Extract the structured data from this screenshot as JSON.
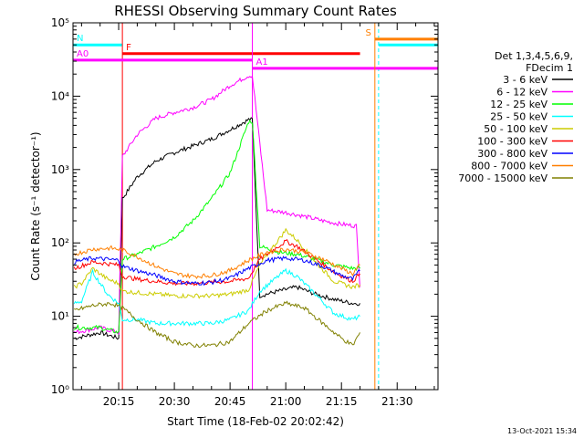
{
  "chart_data": {
    "type": "line",
    "title": "RHESSI Observing Summary Count Rates",
    "xlabel": "Start Time (18-Feb-02 20:02:42)",
    "ylabel": "Count Rate (s⁻¹ detector⁻¹)",
    "y_scale": "log",
    "ylim": [
      1,
      100000
    ],
    "xlim": [
      "20:02:42",
      "21:41:00"
    ],
    "x_tick_labels": [
      "20:15",
      "20:30",
      "20:45",
      "21:00",
      "21:15",
      "21:30"
    ],
    "y_tick_labels": [
      "10⁰",
      "10¹",
      "10²",
      "10³",
      "10⁴",
      "10⁵"
    ],
    "legend": {
      "header": [
        "Det 1,3,4,5,6,9,",
        "FDecim 1"
      ],
      "position": "right"
    },
    "flags": [
      {
        "label": "N",
        "color": "#00ffff",
        "segments": [
          [
            "20:02:42",
            "20:16:00"
          ],
          [
            "21:25:00",
            "21:41:00"
          ]
        ],
        "level": 50000
      },
      {
        "label": "F",
        "color": "#ff0000",
        "segments": [
          [
            "20:16:00",
            "21:20:00"
          ]
        ],
        "level": 38000
      },
      {
        "label": "A0",
        "color": "#ff00ff",
        "segments": [
          [
            "20:02:42",
            "20:51:00"
          ]
        ],
        "level": 31000
      },
      {
        "label": "A1",
        "color": "#ff00ff",
        "segments": [
          [
            "20:51:00",
            "21:41:00"
          ]
        ],
        "level": 24000
      },
      {
        "label": "S",
        "color": "#ff7f00",
        "segments": [
          [
            "21:24:00",
            "21:41:00"
          ]
        ],
        "level": 60000
      }
    ],
    "series": [
      {
        "name": "3 - 6 keV",
        "color": "#000000",
        "x": [
          "20:03",
          "20:10",
          "20:15",
          "20:16",
          "20:20",
          "20:25",
          "20:30",
          "20:35",
          "20:40",
          "20:45",
          "20:50",
          "20:51",
          "20:53",
          "20:58",
          "21:03",
          "21:08",
          "21:13",
          "21:18",
          "21:20"
        ],
        "values": [
          5,
          6,
          5,
          400,
          800,
          1300,
          1700,
          2100,
          2600,
          3500,
          4800,
          4800,
          19,
          22,
          25,
          20,
          17,
          15,
          15
        ]
      },
      {
        "name": "6 - 12 keV",
        "color": "#ff00ff",
        "x": [
          "20:03",
          "20:10",
          "20:15",
          "20:16",
          "20:20",
          "20:25",
          "20:30",
          "20:35",
          "20:40",
          "20:45",
          "20:50",
          "20:51",
          "20:55",
          "21:00",
          "21:05",
          "21:10",
          "21:15",
          "21:19",
          "21:20"
        ],
        "values": [
          6,
          7,
          6,
          1500,
          3000,
          5000,
          6000,
          7000,
          9000,
          14000,
          19000,
          19000,
          280,
          260,
          230,
          200,
          180,
          170,
          25
        ]
      },
      {
        "name": "12 - 25 keV",
        "color": "#00ff00",
        "x": [
          "20:03",
          "20:10",
          "20:15",
          "20:16",
          "20:20",
          "20:25",
          "20:30",
          "20:35",
          "20:40",
          "20:45",
          "20:50",
          "20:51",
          "20:53",
          "20:58",
          "21:03",
          "21:08",
          "21:13",
          "21:18",
          "21:20"
        ],
        "values": [
          7,
          7,
          6,
          60,
          70,
          90,
          120,
          200,
          400,
          900,
          4500,
          4500,
          90,
          75,
          70,
          60,
          50,
          45,
          45
        ]
      },
      {
        "name": "25 - 50 keV",
        "color": "#00ffff",
        "x": [
          "20:03",
          "20:05",
          "20:08",
          "20:12",
          "20:15",
          "20:16",
          "20:20",
          "20:25",
          "20:30",
          "20:35",
          "20:40",
          "20:45",
          "20:50",
          "20:53",
          "20:58",
          "21:00",
          "21:03",
          "21:08",
          "21:13",
          "21:18",
          "21:20"
        ],
        "values": [
          15,
          16,
          40,
          20,
          15,
          9,
          9,
          8,
          8,
          8,
          8,
          9,
          12,
          22,
          35,
          42,
          35,
          20,
          11,
          9,
          10
        ]
      },
      {
        "name": "50 - 100 keV",
        "color": "#cccc00",
        "x": [
          "20:03",
          "20:05",
          "20:08",
          "20:12",
          "20:15",
          "20:16",
          "20:20",
          "20:25",
          "20:30",
          "20:35",
          "20:40",
          "20:45",
          "20:50",
          "20:53",
          "20:58",
          "21:00",
          "21:03",
          "21:08",
          "21:13",
          "21:18",
          "21:20"
        ],
        "values": [
          25,
          28,
          45,
          32,
          28,
          22,
          21,
          20,
          19,
          19,
          19,
          20,
          23,
          50,
          110,
          150,
          110,
          55,
          30,
          25,
          27
        ]
      },
      {
        "name": "100 - 300 keV",
        "color": "#ff0000",
        "x": [
          "20:03",
          "20:08",
          "20:15",
          "20:16",
          "20:20",
          "20:25",
          "20:30",
          "20:35",
          "20:40",
          "20:45",
          "20:50",
          "20:53",
          "20:58",
          "21:00",
          "21:03",
          "21:08",
          "21:13",
          "21:18",
          "21:20"
        ],
        "values": [
          45,
          55,
          50,
          35,
          32,
          30,
          28,
          28,
          29,
          30,
          33,
          60,
          90,
          105,
          90,
          60,
          40,
          30,
          38
        ]
      },
      {
        "name": "300 - 800 keV",
        "color": "#0000ff",
        "x": [
          "20:03",
          "20:08",
          "20:15",
          "20:16",
          "20:20",
          "20:25",
          "20:30",
          "20:35",
          "20:40",
          "20:45",
          "20:50",
          "20:55",
          "21:00",
          "21:05",
          "21:10",
          "21:15",
          "21:18",
          "21:20"
        ],
        "values": [
          55,
          62,
          58,
          48,
          42,
          36,
          30,
          28,
          29,
          33,
          45,
          58,
          62,
          58,
          48,
          36,
          32,
          42
        ]
      },
      {
        "name": "800 - 7000 keV",
        "color": "#ff7f00",
        "x": [
          "20:03",
          "20:08",
          "20:13",
          "20:16",
          "20:20",
          "20:25",
          "20:30",
          "20:35",
          "20:40",
          "20:45",
          "20:50",
          "20:55",
          "21:00",
          "21:05",
          "21:10",
          "21:15",
          "21:18",
          "21:20"
        ],
        "values": [
          70,
          82,
          85,
          80,
          65,
          48,
          38,
          35,
          36,
          42,
          58,
          75,
          82,
          75,
          60,
          45,
          38,
          50
        ]
      },
      {
        "name": "7000 - 15000 keV",
        "color": "#808000",
        "x": [
          "20:03",
          "20:08",
          "20:13",
          "20:16",
          "20:20",
          "20:25",
          "20:30",
          "20:35",
          "20:40",
          "20:45",
          "20:50",
          "20:55",
          "21:00",
          "21:05",
          "21:10",
          "21:15",
          "21:18",
          "21:20"
        ],
        "values": [
          12,
          14,
          15,
          13,
          9,
          6,
          4.5,
          4,
          4,
          4.5,
          8,
          12,
          15,
          13,
          8,
          5,
          4,
          6
        ]
      }
    ]
  },
  "footer": {
    "timestamp": "13-Oct-2021 15:34"
  }
}
